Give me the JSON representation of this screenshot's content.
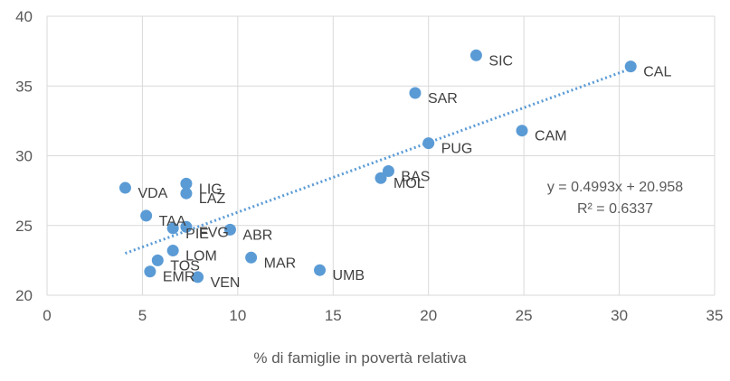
{
  "chart_data": {
    "type": "scatter",
    "title": "",
    "xlabel": "% di famiglie in povertà relativa",
    "ylabel": "",
    "xlim": [
      0,
      35
    ],
    "ylim": [
      20,
      40
    ],
    "x_ticks": [
      "0",
      "5",
      "10",
      "15",
      "20",
      "25",
      "30",
      "35"
    ],
    "y_ticks": [
      "20",
      "25",
      "30",
      "35",
      "40"
    ],
    "grid": true,
    "point_color": "#5b9bd5",
    "trendline_color": "#5b9bd5",
    "points": [
      {
        "label": "VDA",
        "x": 4.1,
        "y": 27.7
      },
      {
        "label": "LIG",
        "x": 7.3,
        "y": 28.0
      },
      {
        "label": "LAZ",
        "x": 7.3,
        "y": 27.3
      },
      {
        "label": "TAA",
        "x": 5.2,
        "y": 25.7
      },
      {
        "label": "PIE",
        "x": 6.6,
        "y": 24.8
      },
      {
        "label": "FVG",
        "x": 7.3,
        "y": 24.9
      },
      {
        "label": "ABR",
        "x": 9.6,
        "y": 24.7
      },
      {
        "label": "LOM",
        "x": 6.6,
        "y": 23.2
      },
      {
        "label": "TOS",
        "x": 5.8,
        "y": 22.5
      },
      {
        "label": "EMR",
        "x": 5.4,
        "y": 21.7
      },
      {
        "label": "VEN",
        "x": 7.9,
        "y": 21.3
      },
      {
        "label": "MAR",
        "x": 10.7,
        "y": 22.7
      },
      {
        "label": "UMB",
        "x": 14.3,
        "y": 21.8
      },
      {
        "label": "BAS",
        "x": 17.9,
        "y": 28.9
      },
      {
        "label": "MOL",
        "x": 17.5,
        "y": 28.4
      },
      {
        "label": "PUG",
        "x": 20.0,
        "y": 30.9
      },
      {
        "label": "SAR",
        "x": 19.3,
        "y": 34.5
      },
      {
        "label": "SIC",
        "x": 22.5,
        "y": 37.2
      },
      {
        "label": "CAM",
        "x": 24.9,
        "y": 31.8
      },
      {
        "label": "CAL",
        "x": 30.6,
        "y": 36.4
      }
    ],
    "trendline": {
      "slope": 0.4993,
      "intercept": 20.958,
      "x_range": [
        4.1,
        30.6
      ],
      "equation": "y = 0.4993x + 20.958",
      "r_squared": "R² = 0.6337"
    }
  }
}
